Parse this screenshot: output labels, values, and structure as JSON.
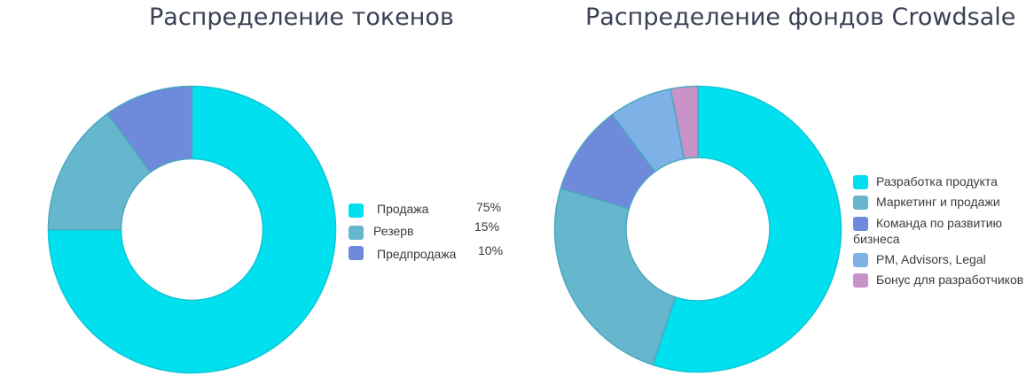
{
  "chart_data": [
    {
      "type": "pie",
      "title": "Распределение токенов",
      "categories": [
        "Продажа",
        "Резерв",
        "Предпродажа"
      ],
      "values": [
        75,
        15,
        10
      ],
      "value_labels": [
        "75%",
        "15%",
        "10%"
      ],
      "colors": [
        "#00e0ee",
        "#66b7cd",
        "#6f8ada"
      ],
      "legend": "right"
    },
    {
      "type": "pie",
      "title": "Распределение фондов Crowdsale",
      "categories": [
        "Разработка продукта",
        "Маркетинг и продажи",
        "Команда по развитию бизнеса",
        "PM, Advisors, Legal",
        "Бонус для разработчиков"
      ],
      "values": [
        54,
        24,
        10,
        7,
        3
      ],
      "colors": [
        "#00e0ee",
        "#66b7cd",
        "#6f8ada",
        "#7eb2e7",
        "#c993c9"
      ],
      "legend": "right"
    }
  ]
}
